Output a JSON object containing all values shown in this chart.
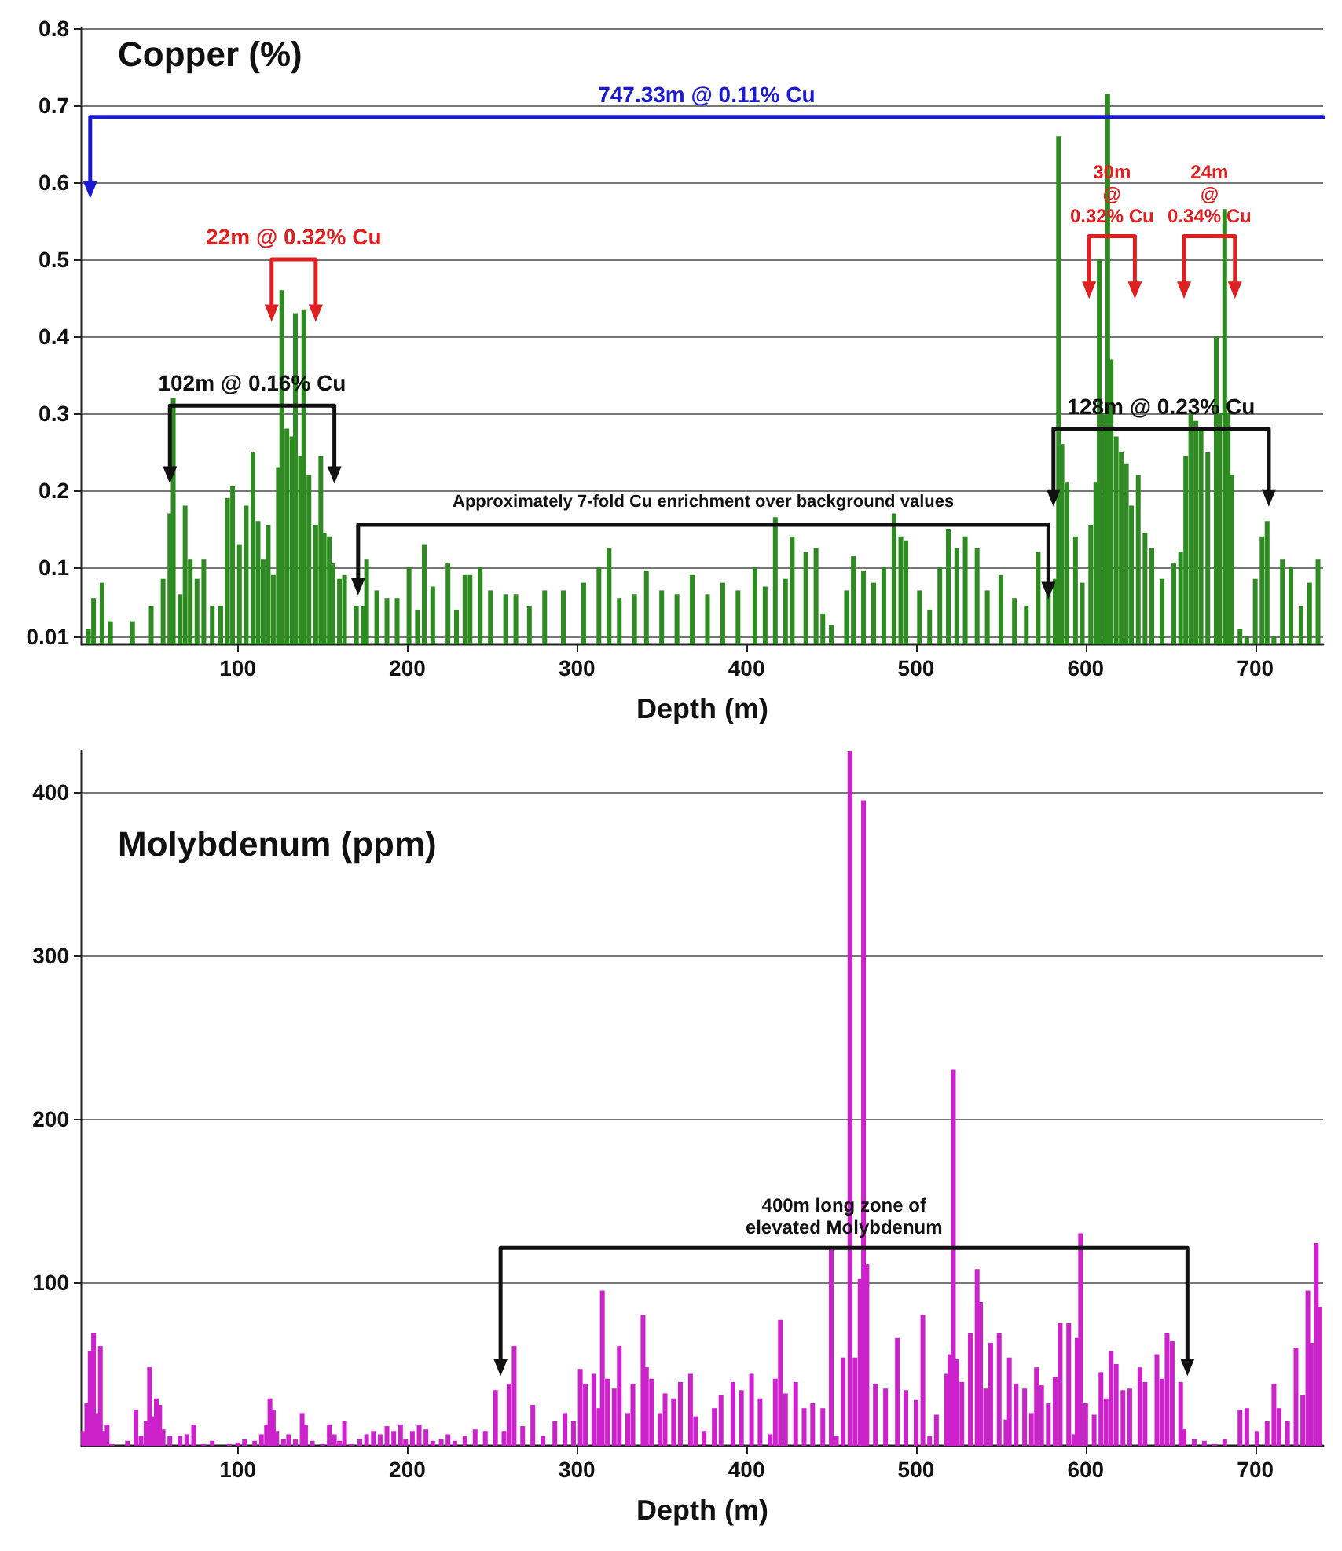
{
  "chart_data": [
    {
      "type": "bar",
      "title": "Copper (%)",
      "xlabel": "Depth (m)",
      "xlim": [
        8,
        740
      ],
      "xticks": [
        100,
        200,
        300,
        400,
        500,
        600,
        700
      ],
      "ylim": [
        0,
        0.8
      ],
      "yticks": [
        0.01,
        0.1,
        0.2,
        0.3,
        0.4,
        0.5,
        0.6,
        0.7,
        0.8
      ],
      "grid": "y",
      "series": [
        {
          "color": "#2e8b22",
          "x": [
            12,
            15,
            20,
            25,
            38,
            49,
            56,
            60,
            62,
            66,
            69,
            72,
            76,
            80,
            85,
            90,
            94,
            97,
            101,
            105,
            109,
            112,
            115,
            118,
            121,
            124,
            126,
            129,
            132,
            134,
            137,
            139,
            142,
            146,
            149,
            151,
            154,
            156,
            160,
            163,
            170,
            174,
            176,
            182,
            188,
            194,
            201,
            206,
            210,
            215,
            224,
            229,
            234,
            237,
            243,
            249,
            258,
            264,
            272,
            281,
            292,
            304,
            313,
            319,
            325,
            334,
            341,
            350,
            359,
            368,
            377,
            386,
            395,
            405,
            411,
            417,
            423,
            427,
            435,
            441,
            445,
            450,
            459,
            463,
            469,
            475,
            481,
            487,
            491,
            494,
            502,
            508,
            514,
            519,
            524,
            529,
            536,
            542,
            550,
            558,
            565,
            572,
            578,
            582,
            584,
            586,
            589,
            594,
            598,
            603,
            606,
            608,
            611,
            613,
            615,
            618,
            621,
            624,
            627,
            631,
            635,
            639,
            645,
            652,
            656,
            659,
            662,
            665,
            668,
            672,
            677,
            679,
            682,
            684,
            686,
            691,
            695,
            700,
            704,
            707,
            711,
            716,
            721,
            727,
            732,
            737
          ],
          "values": [
            0.02,
            0.06,
            0.08,
            0.03,
            0.03,
            0.05,
            0.085,
            0.17,
            0.32,
            0.065,
            0.18,
            0.11,
            0.085,
            0.11,
            0.05,
            0.05,
            0.19,
            0.205,
            0.13,
            0.18,
            0.25,
            0.16,
            0.11,
            0.155,
            0.09,
            0.23,
            0.46,
            0.28,
            0.27,
            0.43,
            0.245,
            0.435,
            0.22,
            0.155,
            0.245,
            0.145,
            0.14,
            0.105,
            0.085,
            0.09,
            0.05,
            0.05,
            0.11,
            0.07,
            0.06,
            0.06,
            0.1,
            0.045,
            0.13,
            0.075,
            0.105,
            0.045,
            0.09,
            0.09,
            0.1,
            0.07,
            0.065,
            0.065,
            0.05,
            0.07,
            0.07,
            0.08,
            0.1,
            0.125,
            0.06,
            0.065,
            0.095,
            0.07,
            0.065,
            0.09,
            0.065,
            0.08,
            0.07,
            0.1,
            0.075,
            0.165,
            0.085,
            0.14,
            0.12,
            0.125,
            0.04,
            0.025,
            0.07,
            0.115,
            0.095,
            0.08,
            0.1,
            0.17,
            0.14,
            0.135,
            0.07,
            0.045,
            0.1,
            0.15,
            0.125,
            0.14,
            0.125,
            0.07,
            0.09,
            0.06,
            0.05,
            0.12,
            0.07,
            0.085,
            0.66,
            0.26,
            0.21,
            0.14,
            0.08,
            0.155,
            0.21,
            0.5,
            0.3,
            0.715,
            0.37,
            0.27,
            0.25,
            0.235,
            0.18,
            0.22,
            0.145,
            0.125,
            0.085,
            0.105,
            0.12,
            0.245,
            0.3,
            0.29,
            0.28,
            0.25,
            0.4,
            0.3,
            0.565,
            0.3,
            0.22,
            0.02,
            0.01,
            0.085,
            0.14,
            0.16,
            0.01,
            0.11,
            0.1,
            0.05,
            0.08,
            0.11
          ]
        },
        {
          "type": "line",
          "name": "747.33m @ 0.11% Cu",
          "color": "#1a1ad0",
          "x": [
            13,
            13,
            740
          ],
          "values": [
            0.59,
            0.685,
            0.685
          ]
        },
        {
          "type": "line",
          "name": "22m @ 0.32% Cu",
          "color": "#e02020",
          "x": [
            120,
            120,
            146,
            146
          ],
          "values": [
            0.43,
            0.5,
            0.5,
            0.43
          ]
        },
        {
          "type": "line",
          "name": "102m @ 0.16% Cu",
          "color": "#111111",
          "x": [
            60,
            60,
            157,
            157
          ],
          "values": [
            0.22,
            0.31,
            0.31,
            0.22
          ]
        },
        {
          "type": "line",
          "name": "Approximately 7-fold Cu enrichment over background values",
          "color": "#111111",
          "x": [
            171,
            171,
            578,
            578
          ],
          "values": [
            0.075,
            0.155,
            0.155,
            0.07
          ]
        },
        {
          "type": "line",
          "name": "128m @ 0.23% Cu",
          "color": "#111111",
          "x": [
            581,
            581,
            708,
            708
          ],
          "values": [
            0.19,
            0.28,
            0.28,
            0.19
          ]
        },
        {
          "type": "line",
          "name": "30m\n@\n0.32% Cu",
          "color": "#e02020",
          "x": [
            602,
            602,
            629,
            629
          ],
          "values": [
            0.46,
            0.53,
            0.53,
            0.46
          ]
        },
        {
          "type": "line",
          "name": "24m\n@\n0.34% Cu",
          "color": "#e02020",
          "x": [
            658,
            658,
            688,
            688
          ],
          "values": [
            0.46,
            0.53,
            0.53,
            0.46
          ]
        }
      ]
    },
    {
      "type": "bar",
      "title": "Molybdenum (ppm)",
      "xlabel": "Depth (m)",
      "xlim": [
        8,
        740
      ],
      "xticks": [
        100,
        200,
        300,
        400,
        500,
        600,
        700
      ],
      "ylim": [
        0,
        425
      ],
      "yticks": [
        100,
        200,
        300,
        400
      ],
      "grid": "y",
      "series": [
        {
          "color": "#cc22cc",
          "x": [
            9,
            11,
            13,
            15,
            17,
            19,
            21,
            23,
            26,
            35,
            40,
            43,
            46,
            48,
            50,
            52,
            54,
            56,
            60,
            66,
            70,
            74,
            80,
            85,
            95,
            100,
            104,
            110,
            114,
            117,
            119,
            121,
            123,
            127,
            130,
            134,
            138,
            140,
            144,
            150,
            154,
            157,
            160,
            163,
            167,
            172,
            176,
            180,
            184,
            188,
            192,
            196,
            199,
            203,
            207,
            211,
            215,
            220,
            224,
            228,
            234,
            240,
            246,
            252,
            257,
            260,
            263,
            268,
            274,
            280,
            287,
            293,
            298,
            302,
            305,
            310,
            313,
            315,
            318,
            322,
            325,
            330,
            333,
            339,
            341,
            344,
            349,
            352,
            357,
            361,
            367,
            370,
            375,
            381,
            385,
            392,
            397,
            403,
            408,
            414,
            417,
            420,
            423,
            429,
            434,
            439,
            445,
            450,
            453,
            457,
            461,
            464,
            467,
            469,
            471,
            476,
            482,
            489,
            494,
            500,
            504,
            508,
            512,
            518,
            520,
            522,
            524,
            527,
            532,
            536,
            538,
            541,
            544,
            549,
            553,
            555,
            559,
            564,
            568,
            571,
            574,
            578,
            582,
            585,
            590,
            593,
            595,
            597,
            600,
            605,
            609,
            612,
            615,
            618,
            622,
            626,
            632,
            635,
            642,
            645,
            648,
            651,
            656,
            658,
            664,
            670,
            676,
            682,
            691,
            695,
            701,
            707,
            711,
            714,
            719,
            724,
            728,
            731,
            733,
            736,
            738
          ],
          "values": [
            9,
            26,
            58,
            69,
            20,
            61,
            9,
            13,
            1,
            3,
            22,
            6,
            15,
            48,
            18,
            29,
            25,
            10,
            6,
            6,
            7,
            13,
            1,
            3,
            1,
            2,
            4,
            3,
            7,
            13,
            29,
            22,
            9,
            4,
            7,
            4,
            20,
            13,
            3,
            1,
            13,
            7,
            3,
            15,
            1,
            4,
            7,
            9,
            7,
            12,
            9,
            13,
            4,
            9,
            13,
            10,
            3,
            4,
            7,
            3,
            6,
            10,
            9,
            34,
            9,
            38,
            61,
            12,
            25,
            6,
            15,
            20,
            15,
            47,
            38,
            44,
            23,
            95,
            41,
            35,
            61,
            20,
            38,
            80,
            48,
            41,
            20,
            32,
            29,
            39,
            44,
            18,
            9,
            23,
            31,
            39,
            34,
            44,
            29,
            7,
            41,
            77,
            32,
            39,
            23,
            26,
            23,
            120,
            6,
            54,
            425,
            54,
            102,
            395,
            111,
            38,
            35,
            66,
            34,
            28,
            80,
            6,
            19,
            44,
            56,
            230,
            53,
            39,
            69,
            108,
            88,
            35,
            63,
            69,
            16,
            54,
            38,
            35,
            20,
            48,
            37,
            26,
            42,
            75,
            75,
            7,
            66,
            130,
            26,
            19,
            45,
            29,
            58,
            50,
            34,
            35,
            48,
            39,
            56,
            41,
            69,
            64,
            39,
            10,
            4,
            3,
            1,
            4,
            22,
            23,
            9,
            15,
            38,
            23,
            15,
            60,
            31,
            95,
            63,
            124,
            85
          ]
        },
        {
          "type": "line",
          "name": "400m long zone of\nelevated Molybdenum",
          "color": "#111111",
          "x": [
            255,
            255,
            660,
            660
          ],
          "values": [
            48,
            121,
            121,
            48
          ]
        }
      ]
    }
  ]
}
